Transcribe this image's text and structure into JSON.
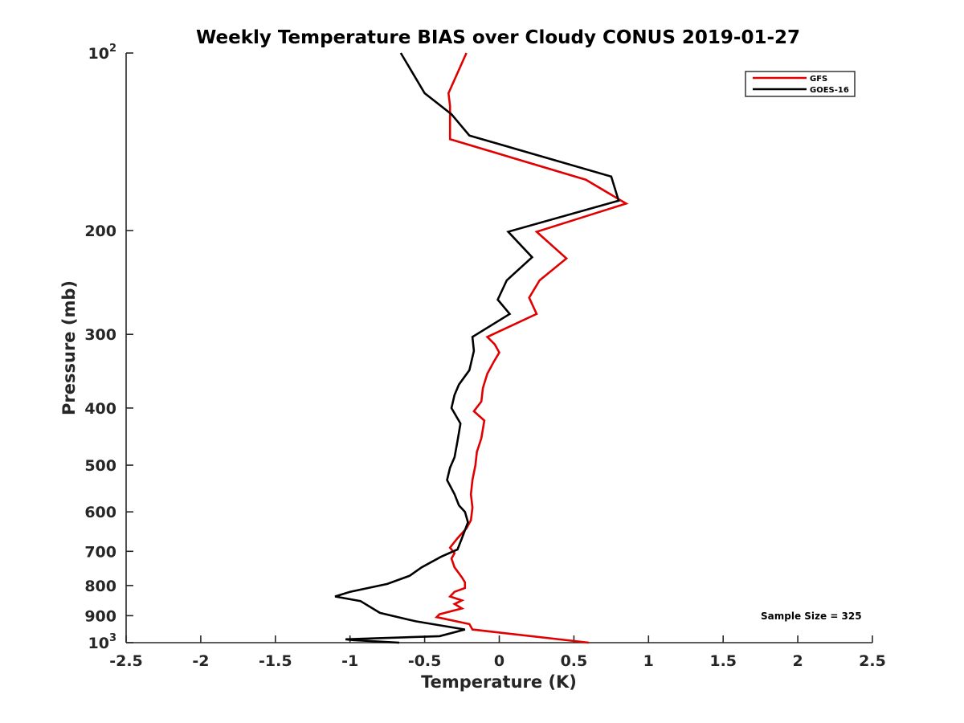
{
  "chart_data": {
    "type": "line",
    "title": "Weekly Temperature BIAS over Cloudy CONUS 2019-01-27",
    "xlabel": "Temperature (K)",
    "ylabel": "Pressure (mb)",
    "xlim": [
      -2.5,
      2.5
    ],
    "ylim": [
      100,
      1000
    ],
    "yscale": "log",
    "y_reversed": true,
    "grid": false,
    "legend_position": "top-right",
    "xticks": [
      {
        "value": -2.5,
        "label": "-2.5"
      },
      {
        "value": -2,
        "label": "-2"
      },
      {
        "value": -1.5,
        "label": "-1.5"
      },
      {
        "value": -1,
        "label": "-1"
      },
      {
        "value": -0.5,
        "label": "-0.5"
      },
      {
        "value": 0,
        "label": "0"
      },
      {
        "value": 0.5,
        "label": "0.5"
      },
      {
        "value": 1,
        "label": "1"
      },
      {
        "value": 1.5,
        "label": "1.5"
      },
      {
        "value": 2,
        "label": "2"
      },
      {
        "value": 2.5,
        "label": "2.5"
      }
    ],
    "yticks": [
      {
        "value": 100,
        "base": "10",
        "exp": "2"
      },
      {
        "value": 200,
        "label": "200"
      },
      {
        "value": 300,
        "label": "300"
      },
      {
        "value": 400,
        "label": "400"
      },
      {
        "value": 500,
        "label": "500"
      },
      {
        "value": 600,
        "label": "600"
      },
      {
        "value": 700,
        "label": "700"
      },
      {
        "value": 800,
        "label": "800"
      },
      {
        "value": 900,
        "label": "900"
      },
      {
        "value": 1000,
        "base": "10",
        "exp": "3"
      }
    ],
    "annotation": "Sample Size = 325",
    "series": [
      {
        "name": "GFS",
        "color": "#e00000",
        "points": [
          [
            0.6,
            1000
          ],
          [
            -0.18,
            950
          ],
          [
            -0.2,
            930
          ],
          [
            -0.42,
            905
          ],
          [
            -0.4,
            895
          ],
          [
            -0.25,
            875
          ],
          [
            -0.3,
            860
          ],
          [
            -0.25,
            848
          ],
          [
            -0.33,
            835
          ],
          [
            -0.3,
            820
          ],
          [
            -0.23,
            808
          ],
          [
            -0.23,
            790
          ],
          [
            -0.25,
            775
          ],
          [
            -0.3,
            745
          ],
          [
            -0.32,
            720
          ],
          [
            -0.3,
            705
          ],
          [
            -0.33,
            690
          ],
          [
            -0.28,
            665
          ],
          [
            -0.22,
            640
          ],
          [
            -0.19,
            620
          ],
          [
            -0.18,
            590
          ],
          [
            -0.19,
            560
          ],
          [
            -0.18,
            530
          ],
          [
            -0.16,
            500
          ],
          [
            -0.15,
            475
          ],
          [
            -0.12,
            450
          ],
          [
            -0.1,
            420
          ],
          [
            -0.17,
            405
          ],
          [
            -0.12,
            390
          ],
          [
            -0.11,
            370
          ],
          [
            -0.08,
            350
          ],
          [
            -0.04,
            335
          ],
          [
            0.0,
            322
          ],
          [
            -0.03,
            312
          ],
          [
            -0.08,
            303
          ],
          [
            0.25,
            277
          ],
          [
            0.2,
            260
          ],
          [
            0.27,
            243
          ],
          [
            0.45,
            223
          ],
          [
            0.25,
            201
          ],
          [
            0.85,
            180
          ],
          [
            0.58,
            164
          ],
          [
            -0.33,
            140
          ],
          [
            -0.33,
            123
          ],
          [
            -0.34,
            117
          ],
          [
            -0.22,
            100
          ]
        ]
      },
      {
        "name": "GOES-16",
        "color": "#000000",
        "points": [
          [
            -0.67,
            1000
          ],
          [
            -0.98,
            990
          ],
          [
            -1.03,
            987
          ],
          [
            -0.4,
            975
          ],
          [
            -0.23,
            950
          ],
          [
            -0.56,
            920
          ],
          [
            -0.8,
            890
          ],
          [
            -0.93,
            850
          ],
          [
            -1.1,
            835
          ],
          [
            -1.0,
            820
          ],
          [
            -0.75,
            795
          ],
          [
            -0.6,
            770
          ],
          [
            -0.52,
            745
          ],
          [
            -0.39,
            715
          ],
          [
            -0.28,
            695
          ],
          [
            -0.25,
            665
          ],
          [
            -0.21,
            625
          ],
          [
            -0.23,
            600
          ],
          [
            -0.27,
            585
          ],
          [
            -0.3,
            560
          ],
          [
            -0.35,
            530
          ],
          [
            -0.33,
            505
          ],
          [
            -0.3,
            485
          ],
          [
            -0.28,
            455
          ],
          [
            -0.26,
            425
          ],
          [
            -0.32,
            400
          ],
          [
            -0.3,
            380
          ],
          [
            -0.27,
            365
          ],
          [
            -0.2,
            345
          ],
          [
            -0.17,
            320
          ],
          [
            -0.18,
            303
          ],
          [
            0.07,
            277
          ],
          [
            -0.01,
            262
          ],
          [
            0.05,
            243
          ],
          [
            0.22,
            222
          ],
          [
            0.06,
            201
          ],
          [
            0.8,
            178
          ],
          [
            0.75,
            162
          ],
          [
            -0.2,
            138
          ],
          [
            -0.32,
            127
          ],
          [
            -0.5,
            117
          ],
          [
            -0.66,
            100
          ]
        ]
      }
    ]
  }
}
